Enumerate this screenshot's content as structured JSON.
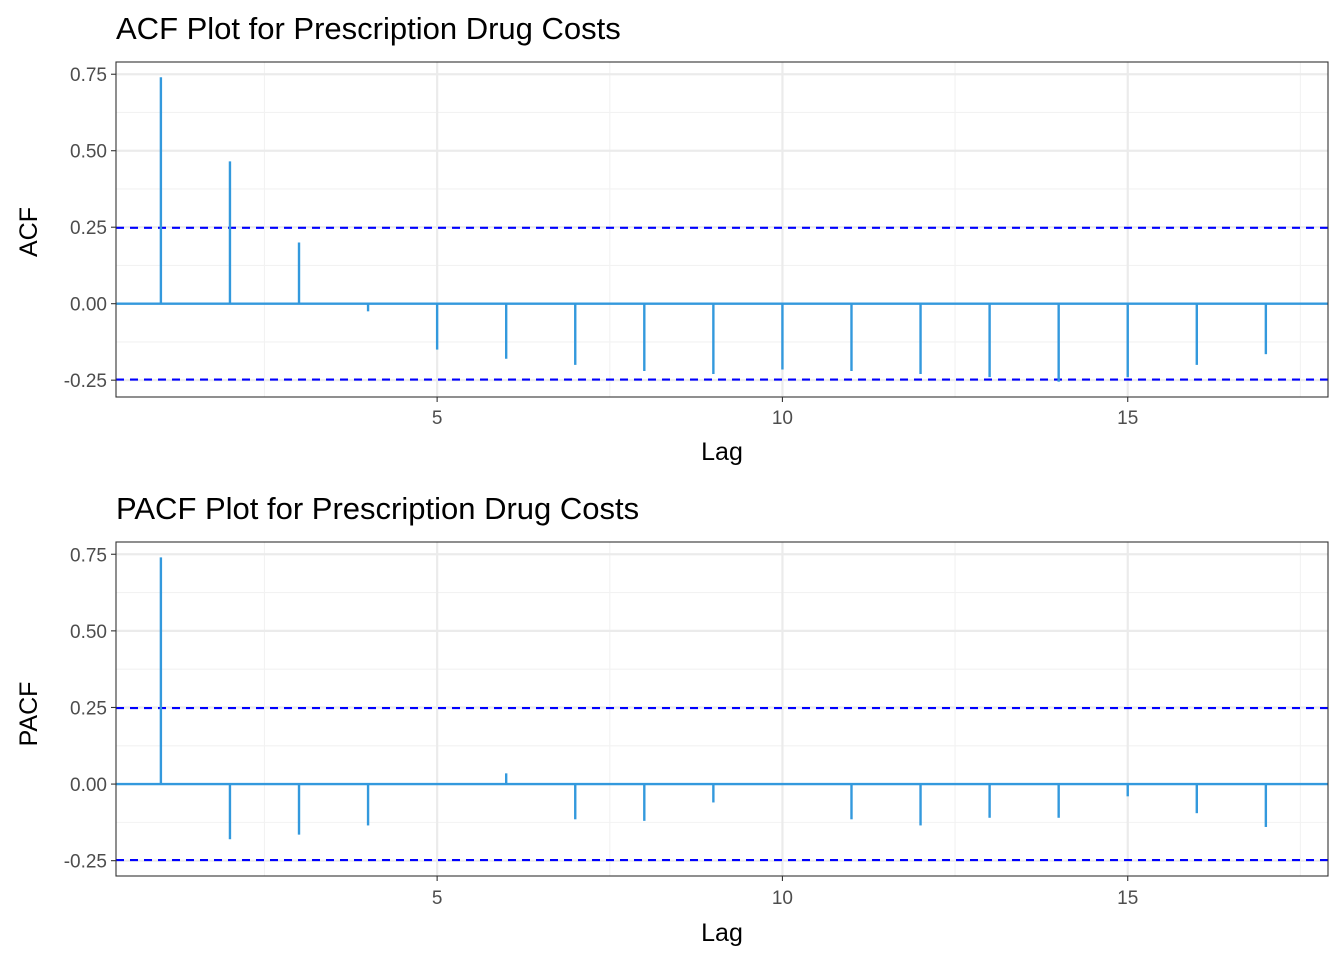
{
  "colors": {
    "spike": "#3399dd",
    "confidence_band": "#0000ff",
    "grid_major": "#ebebeb",
    "grid_minor": "#f2f2f2",
    "panel_border": "#333333",
    "tick_text": "#4d4d4d"
  },
  "chart_data": [
    {
      "type": "bar",
      "title": "ACF Plot for Prescription Drug Costs",
      "xlabel": "Lag",
      "ylabel": "ACF",
      "x_ticks": [
        5,
        10,
        15
      ],
      "y_ticks": [
        -0.25,
        0.0,
        0.25,
        0.5,
        0.75
      ],
      "y_tick_labels": [
        "-0.25",
        "0.00",
        "0.25",
        "0.50",
        "0.75"
      ],
      "xlim": [
        0.35,
        17.9
      ],
      "ylim": [
        -0.305,
        0.79
      ],
      "confidence_bounds": [
        0.248,
        -0.248
      ],
      "grid": true,
      "lags": [
        1,
        2,
        3,
        4,
        5,
        6,
        7,
        8,
        9,
        10,
        11,
        12,
        13,
        14,
        15,
        16,
        17
      ],
      "values": [
        0.74,
        0.465,
        0.2,
        -0.025,
        -0.15,
        -0.18,
        -0.2,
        -0.22,
        -0.23,
        -0.215,
        -0.22,
        -0.23,
        -0.24,
        -0.255,
        -0.24,
        -0.2,
        -0.165
      ]
    },
    {
      "type": "bar",
      "title": "PACF Plot for Prescription Drug Costs",
      "xlabel": "Lag",
      "ylabel": "PACF",
      "x_ticks": [
        5,
        10,
        15
      ],
      "y_ticks": [
        -0.25,
        0.0,
        0.25,
        0.5,
        0.75
      ],
      "y_tick_labels": [
        "-0.25",
        "0.00",
        "0.25",
        "0.50",
        "0.75"
      ],
      "xlim": [
        0.35,
        17.9
      ],
      "ylim": [
        -0.3,
        0.79
      ],
      "confidence_bounds": [
        0.248,
        -0.248
      ],
      "grid": true,
      "lags": [
        1,
        2,
        3,
        4,
        5,
        6,
        7,
        8,
        9,
        10,
        11,
        12,
        13,
        14,
        15,
        16,
        17
      ],
      "values": [
        0.74,
        -0.18,
        -0.165,
        -0.135,
        0.0,
        0.035,
        -0.115,
        -0.12,
        -0.06,
        0.0,
        -0.115,
        -0.135,
        -0.11,
        -0.11,
        -0.04,
        -0.095,
        -0.14
      ]
    }
  ]
}
